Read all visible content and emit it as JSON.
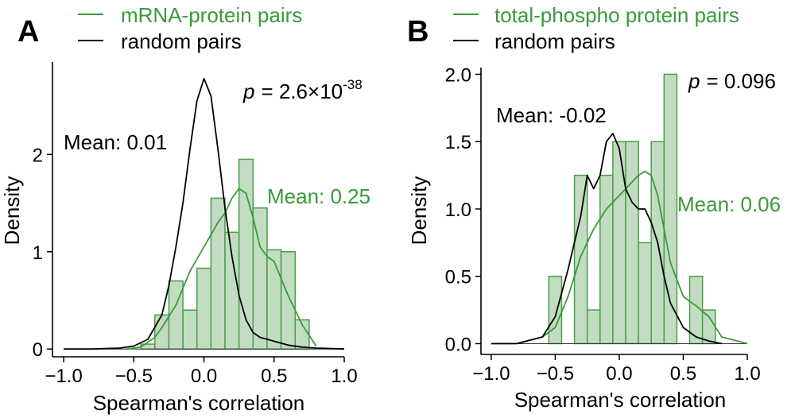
{
  "colors": {
    "green": "#3a9a3a",
    "green_fill": "#c2dcc2",
    "green_edge": "#4a9e4a",
    "black": "#000000"
  },
  "chart_data": [
    {
      "type": "histogram-density",
      "panel_label": "A",
      "legend": [
        {
          "name": "mRNA-protein pairs",
          "color": "#3a9a3a"
        },
        {
          "name": "random pairs",
          "color": "#000000"
        }
      ],
      "xlabel": "Spearman's correlation",
      "ylabel": "Density",
      "xlim": [
        -1.08,
        1.0
      ],
      "ylim": [
        -0.08,
        2.95
      ],
      "xticks": [
        -1.0,
        -0.5,
        0.0,
        0.5,
        1.0
      ],
      "xtick_labels": [
        "−1.0",
        "−0.5",
        "0.0",
        "0.5",
        "1.0"
      ],
      "yticks": [
        0,
        1,
        2
      ],
      "ytick_labels": [
        "0",
        "1",
        "2"
      ],
      "p_prefix": "p",
      "p_value": "= 2.6×10",
      "p_exponent": "-38",
      "mean_random": "Mean: 0.01",
      "mean_pairs": "Mean: 0.25",
      "histogram": {
        "bin_edges": [
          -0.45,
          -0.35,
          -0.25,
          -0.15,
          -0.05,
          0.05,
          0.15,
          0.25,
          0.35,
          0.45,
          0.55,
          0.65,
          0.75
        ],
        "values": [
          0.05,
          0.35,
          0.7,
          0.4,
          0.83,
          1.55,
          1.2,
          1.95,
          1.45,
          1.02,
          1.0,
          0.3
        ]
      },
      "density_pairs": {
        "x": [
          -0.55,
          -0.45,
          -0.35,
          -0.3,
          -0.2,
          -0.1,
          0.0,
          0.1,
          0.15,
          0.2,
          0.25,
          0.3,
          0.35,
          0.4,
          0.45,
          0.5,
          0.6,
          0.7,
          0.8
        ],
        "y": [
          0.0,
          0.02,
          0.12,
          0.22,
          0.45,
          0.8,
          1.05,
          1.3,
          1.4,
          1.55,
          1.65,
          1.6,
          1.35,
          1.05,
          0.95,
          0.9,
          0.55,
          0.25,
          0.03
        ]
      },
      "density_random": {
        "x": [
          -1.0,
          -0.8,
          -0.6,
          -0.5,
          -0.4,
          -0.3,
          -0.25,
          -0.2,
          -0.15,
          -0.1,
          -0.05,
          0.0,
          0.05,
          0.1,
          0.15,
          0.2,
          0.25,
          0.3,
          0.35,
          0.4,
          0.5,
          0.6,
          0.7,
          0.8,
          1.0
        ],
        "y": [
          0.0,
          0.0,
          0.01,
          0.03,
          0.1,
          0.35,
          0.65,
          1.05,
          1.5,
          2.05,
          2.55,
          2.78,
          2.6,
          2.05,
          1.45,
          0.95,
          0.55,
          0.3,
          0.17,
          0.12,
          0.08,
          0.04,
          0.02,
          0.01,
          0.0
        ]
      }
    },
    {
      "type": "histogram-density",
      "panel_label": "B",
      "legend": [
        {
          "name": "total-phospho protein pairs",
          "color": "#3a9a3a"
        },
        {
          "name": "random pairs",
          "color": "#000000"
        }
      ],
      "xlabel": "Spearman's correlation",
      "ylabel": "Density",
      "xlim": [
        -1.08,
        1.0
      ],
      "ylim": [
        -0.08,
        2.05
      ],
      "xticks": [
        -1.0,
        -0.5,
        0.0,
        0.5,
        1.0
      ],
      "xtick_labels": [
        "−1.0",
        "−0.5",
        "0.0",
        "0.5",
        "1.0"
      ],
      "yticks": [
        0.0,
        0.5,
        1.0,
        1.5,
        2.0
      ],
      "ytick_labels": [
        "0.0",
        "0.5",
        "1.0",
        "1.5",
        "2.0"
      ],
      "p_prefix": "p",
      "p_value": "= 0.096",
      "p_exponent": "",
      "mean_random": "Mean: -0.02",
      "mean_pairs": "Mean: 0.06",
      "histogram": {
        "bin_edges": [
          -0.55,
          -0.45,
          -0.35,
          -0.25,
          -0.15,
          -0.05,
          0.05,
          0.15,
          0.25,
          0.35,
          0.45,
          0.55,
          0.65,
          0.75
        ],
        "values": [
          0.5,
          0.0,
          1.25,
          0.25,
          1.25,
          1.5,
          1.5,
          0.75,
          1.5,
          2.0,
          0.0,
          0.5,
          0.25
        ]
      },
      "density_pairs": {
        "x": [
          -1.0,
          -0.8,
          -0.6,
          -0.5,
          -0.4,
          -0.3,
          -0.2,
          -0.1,
          0.0,
          0.1,
          0.15,
          0.2,
          0.25,
          0.3,
          0.35,
          0.4,
          0.5,
          0.6,
          0.7,
          0.8,
          1.0
        ],
        "y": [
          0.0,
          0.0,
          0.05,
          0.12,
          0.35,
          0.65,
          0.85,
          1.0,
          1.1,
          1.2,
          1.25,
          1.28,
          1.25,
          1.1,
          0.85,
          0.6,
          0.35,
          0.28,
          0.2,
          0.05,
          0.0
        ]
      },
      "density_random": {
        "x": [
          -1.0,
          -0.8,
          -0.6,
          -0.5,
          -0.4,
          -0.3,
          -0.25,
          -0.2,
          -0.15,
          -0.1,
          -0.05,
          0.0,
          0.05,
          0.1,
          0.15,
          0.2,
          0.25,
          0.3,
          0.35,
          0.4,
          0.5,
          0.6,
          0.7,
          0.8
        ],
        "y": [
          0.0,
          0.0,
          0.05,
          0.2,
          0.55,
          0.95,
          1.25,
          1.15,
          1.25,
          1.5,
          1.56,
          1.45,
          1.15,
          1.05,
          1.0,
          1.0,
          0.9,
          0.75,
          0.5,
          0.3,
          0.12,
          0.05,
          0.02,
          0.0
        ]
      }
    }
  ]
}
